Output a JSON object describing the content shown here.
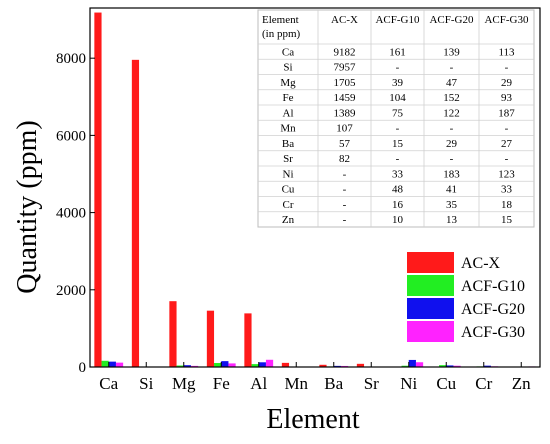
{
  "chart_data": {
    "type": "bar",
    "xlabel": "Element",
    "ylabel": "Quantity (ppm)",
    "ylim": [
      0,
      9300
    ],
    "yticks": [
      0,
      2000,
      4000,
      6000,
      8000
    ],
    "categories": [
      "Ca",
      "Si",
      "Mg",
      "Fe",
      "Al",
      "Mn",
      "Ba",
      "Sr",
      "Ni",
      "Cu",
      "Cr",
      "Zn"
    ],
    "series": [
      {
        "name": "AC-X",
        "color": "#ff1a1a",
        "values": [
          9182,
          7957,
          1705,
          1459,
          1389,
          107,
          57,
          82,
          0,
          0,
          0,
          0
        ]
      },
      {
        "name": "ACF-G10",
        "color": "#22ee22",
        "values": [
          161,
          0,
          39,
          104,
          75,
          0,
          15,
          0,
          33,
          48,
          16,
          10
        ]
      },
      {
        "name": "ACF-G20",
        "color": "#1010ee",
        "values": [
          139,
          0,
          47,
          152,
          122,
          0,
          29,
          0,
          183,
          41,
          35,
          13
        ]
      },
      {
        "name": "ACF-G30",
        "color": "#ff22ff",
        "values": [
          113,
          0,
          29,
          93,
          187,
          0,
          27,
          0,
          123,
          33,
          18,
          15
        ]
      }
    ],
    "legend_position": "bottom-right",
    "grid": false,
    "table": {
      "header": [
        "Element\n(in ppm)",
        "AC-X",
        "ACF-G10",
        "ACF-G20",
        "ACF-G30"
      ],
      "rows": [
        [
          "Ca",
          "9182",
          "161",
          "139",
          "113"
        ],
        [
          "Si",
          "7957",
          "-",
          "-",
          "-"
        ],
        [
          "Mg",
          "1705",
          "39",
          "47",
          "29"
        ],
        [
          "Fe",
          "1459",
          "104",
          "152",
          "93"
        ],
        [
          "Al",
          "1389",
          "75",
          "122",
          "187"
        ],
        [
          "Mn",
          "107",
          "-",
          "-",
          "-"
        ],
        [
          "Ba",
          "57",
          "15",
          "29",
          "27"
        ],
        [
          "Sr",
          "82",
          "-",
          "-",
          "-"
        ],
        [
          "Ni",
          "-",
          "33",
          "183",
          "123"
        ],
        [
          "Cu",
          "-",
          "48",
          "41",
          "33"
        ],
        [
          "Cr",
          "-",
          "16",
          "35",
          "18"
        ],
        [
          "Zn",
          "-",
          "10",
          "13",
          "15"
        ]
      ]
    }
  }
}
